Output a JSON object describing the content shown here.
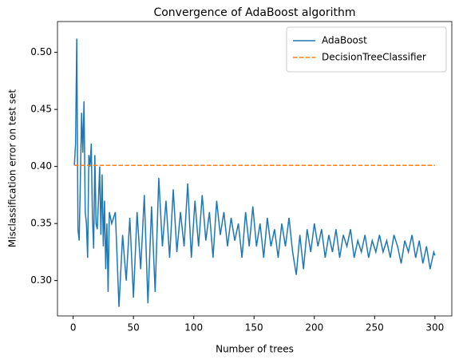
{
  "chart_data": {
    "type": "line",
    "title": "Convergence of AdaBoost algorithm",
    "xlabel": "Number of trees",
    "ylabel": "Misclassification error on test set",
    "xlim": [
      -13,
      314
    ],
    "ylim": [
      0.269,
      0.527
    ],
    "xticks": [
      0,
      50,
      100,
      150,
      200,
      250,
      300
    ],
    "yticks": [
      {
        "value": 0.3,
        "label": "0.30"
      },
      0.35,
      {
        "value": 0.4,
        "label": "0.40"
      },
      0.45,
      {
        "value": 0.5,
        "label": "0.50"
      }
    ],
    "legend": "upper right",
    "series": [
      {
        "name": "AdaBoost",
        "color": "#1f77b4",
        "linestyle": "solid",
        "x": [
          1,
          2,
          3,
          4,
          5,
          6,
          7,
          8,
          9,
          10,
          11,
          12,
          13,
          14,
          15,
          16,
          17,
          18,
          19,
          20,
          21,
          22,
          23,
          24,
          25,
          26,
          27,
          28,
          29,
          30,
          32,
          35,
          38,
          41,
          44,
          47,
          50,
          53,
          56,
          59,
          62,
          65,
          68,
          71,
          74,
          77,
          80,
          83,
          86,
          89,
          92,
          95,
          98,
          101,
          104,
          107,
          110,
          113,
          116,
          119,
          122,
          125,
          128,
          131,
          134,
          137,
          140,
          143,
          146,
          149,
          152,
          155,
          158,
          161,
          164,
          167,
          170,
          173,
          176,
          179,
          182,
          185,
          188,
          191,
          194,
          197,
          200,
          203,
          206,
          209,
          212,
          215,
          218,
          221,
          224,
          227,
          230,
          233,
          236,
          239,
          242,
          245,
          248,
          251,
          254,
          257,
          260,
          263,
          266,
          269,
          272,
          275,
          278,
          281,
          284,
          287,
          290,
          293,
          296,
          299,
          300
        ],
        "values": [
          0.401,
          0.42,
          0.512,
          0.345,
          0.335,
          0.39,
          0.447,
          0.412,
          0.457,
          0.36,
          0.35,
          0.32,
          0.41,
          0.4,
          0.42,
          0.355,
          0.328,
          0.41,
          0.35,
          0.345,
          0.37,
          0.4,
          0.34,
          0.393,
          0.33,
          0.37,
          0.31,
          0.35,
          0.29,
          0.36,
          0.35,
          0.36,
          0.277,
          0.34,
          0.3,
          0.355,
          0.285,
          0.36,
          0.31,
          0.375,
          0.28,
          0.365,
          0.29,
          0.39,
          0.33,
          0.37,
          0.32,
          0.38,
          0.325,
          0.36,
          0.33,
          0.385,
          0.32,
          0.37,
          0.33,
          0.375,
          0.335,
          0.36,
          0.32,
          0.37,
          0.34,
          0.36,
          0.33,
          0.355,
          0.335,
          0.35,
          0.32,
          0.36,
          0.33,
          0.365,
          0.33,
          0.35,
          0.32,
          0.355,
          0.33,
          0.345,
          0.32,
          0.35,
          0.33,
          0.355,
          0.325,
          0.305,
          0.34,
          0.31,
          0.345,
          0.325,
          0.35,
          0.33,
          0.345,
          0.32,
          0.34,
          0.325,
          0.345,
          0.32,
          0.34,
          0.33,
          0.345,
          0.32,
          0.335,
          0.325,
          0.34,
          0.32,
          0.335,
          0.325,
          0.34,
          0.325,
          0.335,
          0.32,
          0.34,
          0.33,
          0.315,
          0.335,
          0.325,
          0.34,
          0.32,
          0.335,
          0.315,
          0.33,
          0.31,
          0.325,
          0.322
        ]
      },
      {
        "name": "DecisionTreeClassifier",
        "color": "#ff7f0e",
        "linestyle": "dashed",
        "x": [
          1,
          300
        ],
        "values": [
          0.401,
          0.401
        ]
      }
    ]
  }
}
